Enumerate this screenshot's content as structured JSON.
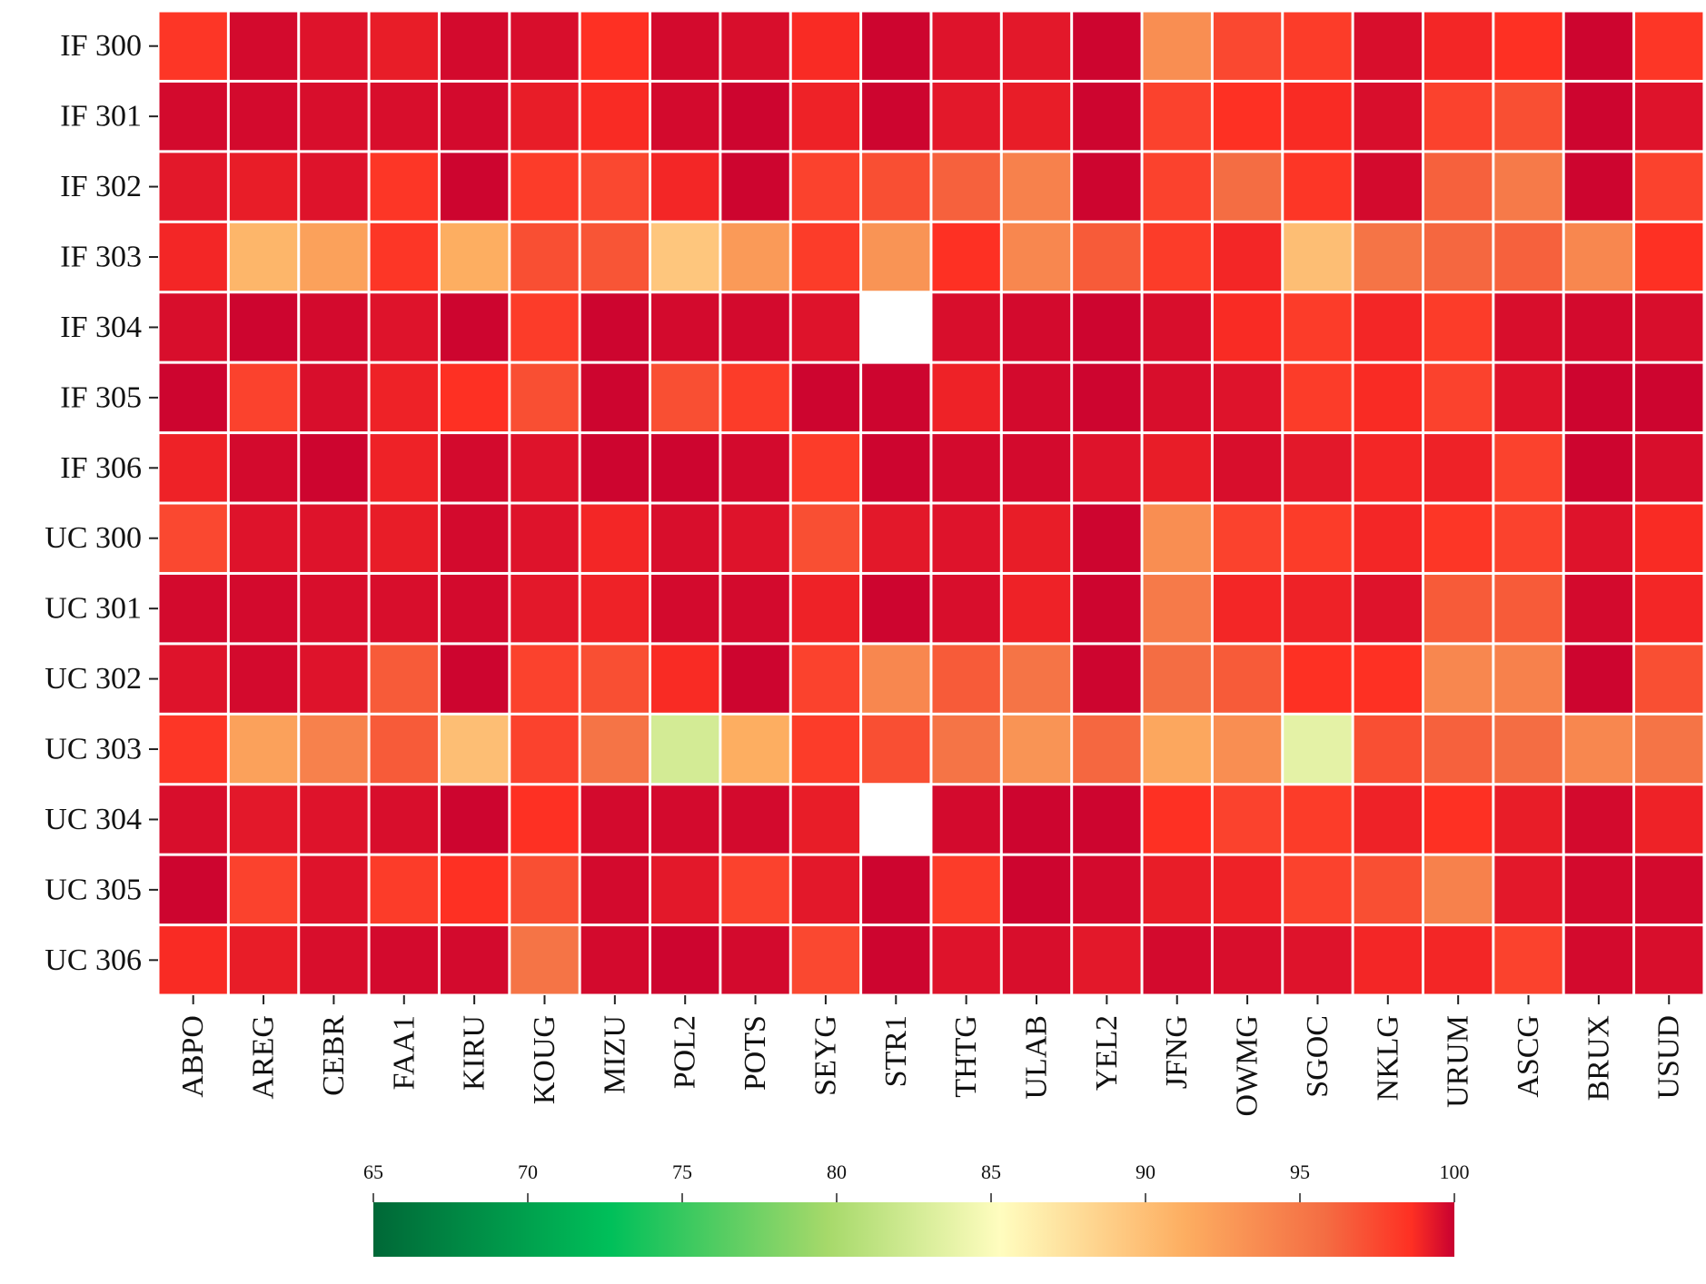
{
  "chart_data": {
    "type": "heatmap",
    "title": "",
    "xlabel": "",
    "ylabel": "",
    "rows": [
      "IF 300",
      "IF 301",
      "IF 302",
      "IF 303",
      "IF 304",
      "IF 305",
      "IF 306",
      "UC 300",
      "UC 301",
      "UC 302",
      "UC 303",
      "UC 304",
      "UC 305",
      "UC 306"
    ],
    "columns": [
      "ABPO",
      "AREG",
      "CEBR",
      "FAA1",
      "KIRU",
      "KOUG",
      "MIZU",
      "POL2",
      "POTS",
      "SEYG",
      "STR1",
      "THTG",
      "ULAB",
      "YEL2",
      "JFNG",
      "OWMG",
      "SGOC",
      "NKLG",
      "URUM",
      "ASCG",
      "BRUX",
      "USUD"
    ],
    "values": [
      [
        94.5,
        99.0,
        98.0,
        97.0,
        99.0,
        98.5,
        95.0,
        99.0,
        98.5,
        95.5,
        99.5,
        98.0,
        97.5,
        99.5,
        87.5,
        93.0,
        94.0,
        98.5,
        96.0,
        95.0,
        99.5,
        94.5
      ],
      [
        99.0,
        99.0,
        98.5,
        98.5,
        99.0,
        97.0,
        95.5,
        99.0,
        99.5,
        96.5,
        99.5,
        97.5,
        97.0,
        99.5,
        93.5,
        95.0,
        95.5,
        98.5,
        93.5,
        92.5,
        99.5,
        98.0
      ],
      [
        97.5,
        97.0,
        98.0,
        94.5,
        99.5,
        94.0,
        93.0,
        96.0,
        99.5,
        93.5,
        92.5,
        91.0,
        88.5,
        99.5,
        93.5,
        90.0,
        94.5,
        99.0,
        91.0,
        89.0,
        99.5,
        93.5
      ],
      [
        96.0,
        84.5,
        86.0,
        94.5,
        85.0,
        92.5,
        92.0,
        83.5,
        86.5,
        94.0,
        87.0,
        95.0,
        88.0,
        91.5,
        94.0,
        96.0,
        84.0,
        89.5,
        90.5,
        91.0,
        88.0,
        95.0
      ],
      [
        98.5,
        99.5,
        99.0,
        98.0,
        99.5,
        94.0,
        99.5,
        99.0,
        99.0,
        98.0,
        null,
        98.5,
        99.0,
        99.5,
        98.5,
        95.5,
        94.0,
        96.0,
        94.0,
        98.5,
        99.0,
        98.5
      ],
      [
        99.5,
        93.5,
        98.5,
        96.5,
        95.0,
        92.5,
        99.5,
        92.5,
        94.0,
        99.5,
        99.5,
        96.5,
        99.0,
        99.5,
        98.5,
        98.0,
        94.0,
        95.5,
        93.5,
        98.0,
        99.5,
        99.5
      ],
      [
        96.5,
        99.0,
        99.5,
        96.5,
        99.0,
        98.0,
        99.5,
        99.5,
        99.0,
        94.0,
        99.5,
        99.0,
        99.0,
        98.0,
        97.0,
        98.5,
        97.5,
        96.0,
        96.5,
        93.5,
        99.5,
        98.5
      ],
      [
        93.0,
        98.0,
        98.0,
        97.0,
        99.0,
        98.0,
        96.0,
        98.5,
        98.0,
        92.5,
        97.5,
        98.0,
        97.0,
        99.5,
        87.5,
        93.5,
        94.0,
        96.0,
        94.5,
        93.5,
        98.0,
        95.5
      ],
      [
        99.0,
        99.0,
        98.5,
        98.5,
        99.0,
        97.5,
        96.5,
        99.0,
        99.0,
        96.5,
        99.5,
        98.5,
        96.5,
        99.5,
        89.0,
        96.0,
        96.5,
        98.0,
        91.5,
        91.5,
        99.0,
        96.0
      ],
      [
        98.0,
        99.0,
        98.0,
        91.5,
        99.5,
        93.5,
        92.5,
        95.5,
        99.5,
        93.5,
        88.0,
        91.5,
        89.5,
        99.5,
        90.0,
        91.5,
        95.0,
        95.0,
        88.0,
        88.5,
        99.5,
        92.5
      ],
      [
        94.5,
        86.0,
        88.5,
        91.5,
        84.0,
        93.5,
        89.5,
        77.5,
        85.0,
        94.0,
        92.5,
        89.5,
        87.0,
        90.5,
        85.5,
        87.5,
        78.5,
        92.5,
        91.0,
        90.0,
        88.0,
        89.5
      ],
      [
        98.5,
        97.5,
        98.0,
        98.5,
        99.5,
        95.0,
        99.0,
        99.0,
        99.0,
        97.0,
        null,
        99.0,
        99.5,
        99.5,
        95.0,
        93.5,
        94.0,
        96.5,
        95.0,
        97.0,
        99.0,
        96.5
      ],
      [
        99.5,
        93.5,
        98.0,
        94.0,
        95.0,
        92.5,
        99.0,
        97.5,
        93.5,
        97.5,
        99.5,
        94.0,
        99.5,
        99.0,
        97.0,
        96.5,
        93.5,
        92.5,
        88.5,
        97.5,
        99.0,
        99.0
      ],
      [
        95.5,
        97.0,
        98.5,
        99.0,
        99.0,
        89.5,
        99.0,
        99.5,
        99.0,
        93.0,
        99.5,
        98.0,
        98.5,
        97.5,
        99.0,
        98.5,
        98.0,
        96.0,
        96.0,
        93.5,
        99.0,
        98.5
      ]
    ],
    "missing_cells": [
      [
        "IF 304",
        "STR1"
      ],
      [
        "UC 304",
        "STR1"
      ]
    ],
    "colorbar": {
      "min": 65,
      "max": 100,
      "ticks": [
        "65",
        "70",
        "75",
        "80",
        "85",
        "90",
        "95",
        "100"
      ],
      "colormap": [
        "#006837",
        "#00c05a",
        "#a6d96a",
        "#fffdbf",
        "#fdae61",
        "#f46d43",
        "#fe3023",
        "#c80030"
      ],
      "orientation": "horizontal",
      "placement": "bottom"
    },
    "grid": "white-separators",
    "legend": "none"
  }
}
